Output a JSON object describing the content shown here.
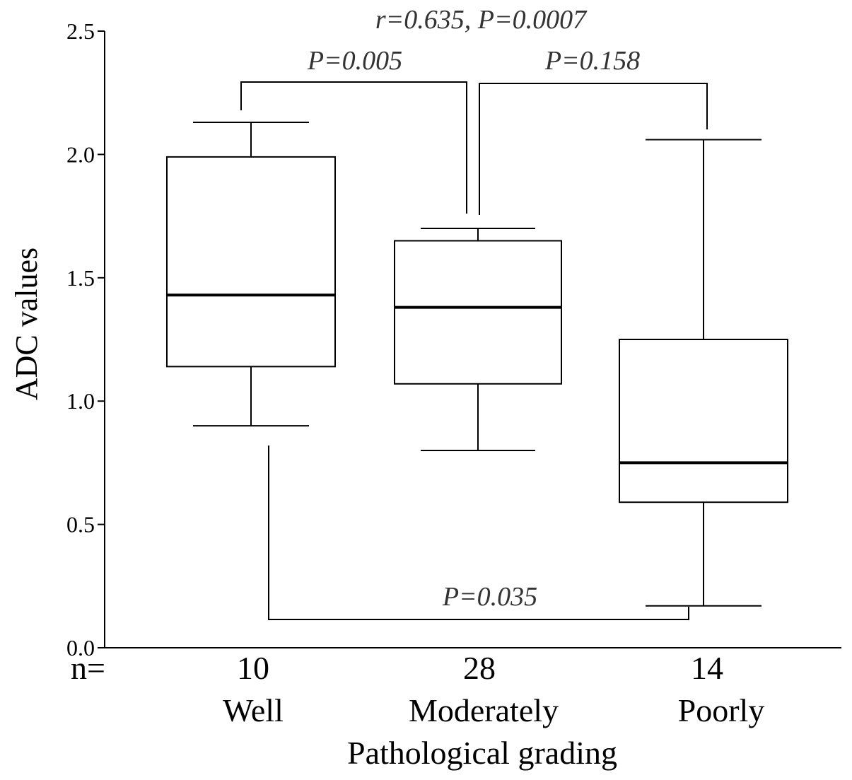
{
  "chart_data": {
    "type": "box",
    "ylabel": "ADC  values",
    "xlabel": "Pathological grading",
    "ylim": [
      0,
      2.5
    ],
    "yticks": [
      "0.0",
      "0.5",
      "1.0",
      "1.5",
      "2.0",
      "2.5"
    ],
    "n_label": "n=",
    "categories": [
      "Well",
      "Moderately",
      "Poorly"
    ],
    "n": [
      "10",
      "28",
      "14"
    ],
    "boxes": [
      {
        "min": 0.9,
        "q1": 1.14,
        "median": 1.43,
        "q3": 1.99,
        "max": 2.13
      },
      {
        "min": 0.8,
        "q1": 1.07,
        "median": 1.38,
        "q3": 1.65,
        "max": 1.7
      },
      {
        "min": 0.17,
        "q1": 0.59,
        "median": 0.75,
        "q3": 1.25,
        "max": 2.06
      }
    ],
    "annotations": {
      "overall": "r=0.635, P=0.0007",
      "well_vs_moderate": "P=0.005",
      "moderate_vs_poor": "P=0.158",
      "well_vs_poor": "P=0.035"
    },
    "grid": false
  }
}
